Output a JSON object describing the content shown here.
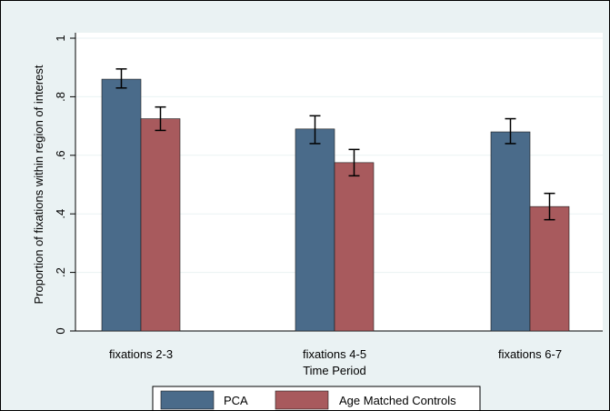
{
  "chart_data": {
    "type": "bar",
    "title": "",
    "xlabel": "Time Period",
    "ylabel": "Proportion of fixations within region of interest",
    "categories": [
      "fixations 2-3",
      "fixations 4-5",
      "fixations 6-7"
    ],
    "series": [
      {
        "name": "PCA",
        "color": "#4a6b8a",
        "values": [
          0.86,
          0.69,
          0.68
        ],
        "error_low": [
          0.83,
          0.64,
          0.64
        ],
        "error_high": [
          0.895,
          0.735,
          0.725
        ]
      },
      {
        "name": "Age Matched Controls",
        "color": "#a85a5d",
        "values": [
          0.725,
          0.575,
          0.425
        ],
        "error_low": [
          0.685,
          0.53,
          0.38
        ],
        "error_high": [
          0.765,
          0.62,
          0.47
        ]
      }
    ],
    "ylim": [
      0,
      1
    ],
    "yticks": [
      0,
      0.2,
      0.4,
      0.6,
      0.8,
      1
    ],
    "ytick_labels": [
      "0",
      ".2",
      ".4",
      ".6",
      ".8",
      "1"
    ],
    "grid": true,
    "legend_position": "bottom",
    "colors": {
      "plot_background": "#ffffff",
      "outer_background": "#eaf2f3",
      "grid": "#eaf2f3"
    }
  }
}
